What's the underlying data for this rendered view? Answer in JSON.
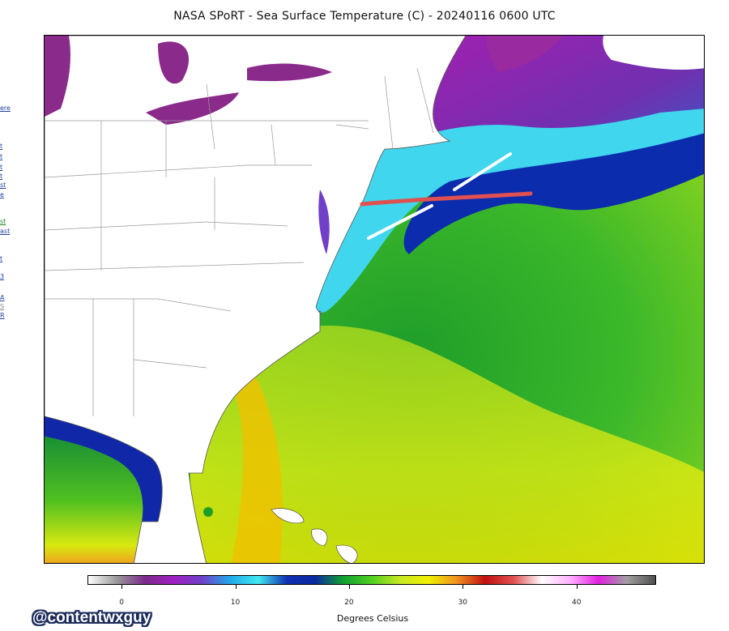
{
  "title": "NASA SPoRT - Sea Surface Temperature (C) - 20240116 0600 UTC",
  "colorbar": {
    "label": "Degrees Celsius",
    "range": [
      -3,
      47
    ],
    "ticks": [
      {
        "value": 0,
        "label": "0"
      },
      {
        "value": 10,
        "label": "10"
      },
      {
        "value": 20,
        "label": "20"
      },
      {
        "value": 30,
        "label": "30"
      },
      {
        "value": 40,
        "label": "40"
      }
    ],
    "colors": [
      "#ffffff",
      "#9a9a9a",
      "#7a2a8a",
      "#a020c0",
      "#7040c8",
      "#20a8e8",
      "#40e8f0",
      "#1030b0",
      "#0a2aa0",
      "#10a030",
      "#50d020",
      "#c8e820",
      "#f0f000",
      "#f09020",
      "#c01010",
      "#e05050",
      "#ffffff",
      "#ffb0ff",
      "#e020e0",
      "#a0a0a0",
      "#505050"
    ]
  },
  "left_links": [
    "ere",
    "t",
    "t",
    "t",
    "t",
    "st",
    "e",
    "st",
    "ast",
    "t",
    "3",
    "A",
    "S",
    "R"
  ],
  "watermark": "@contentwxguy"
}
